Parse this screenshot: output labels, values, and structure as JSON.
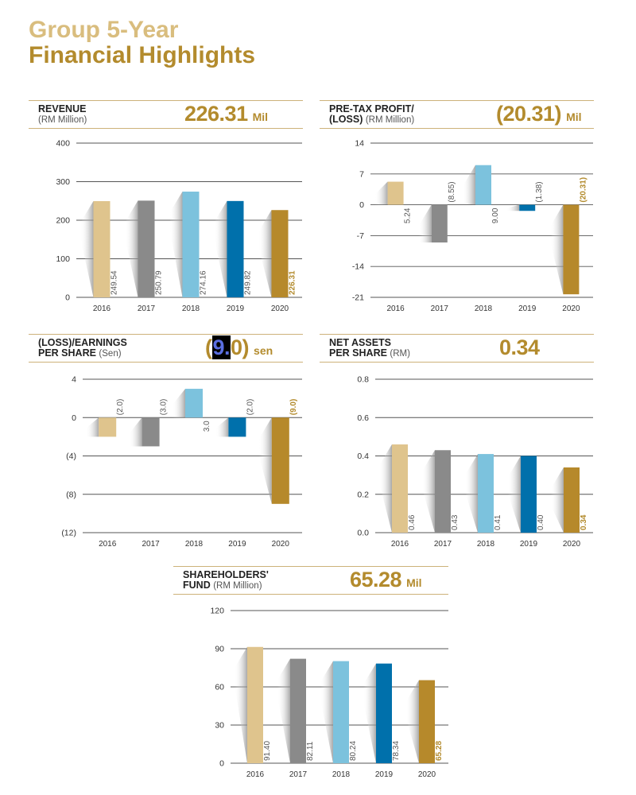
{
  "title": {
    "line1": "Group 5-Year",
    "line2": "Financial Highlights"
  },
  "colors": {
    "bars": [
      "#dfc48d",
      "#8a8a8a",
      "#7cc2dd",
      "#0070ab",
      "#b6892b"
    ],
    "accent": "#b38b2d",
    "label_gray": "#555555",
    "grid": "#555555"
  },
  "charts": {
    "revenue": {
      "label1": "REVENUE",
      "label2_sub": "(RM Million)",
      "headline_value": "226.31",
      "headline_unit": "Mil"
    },
    "pbt": {
      "label1": "PRE-TAX PROFIT/",
      "label2_main": "(LOSS)",
      "label2_sub": "(RM Million)",
      "headline_value": "(20.31)",
      "headline_unit": "Mil"
    },
    "eps": {
      "label1": "(LOSS)/EARNINGS",
      "label2_main": "PER SHARE",
      "label2_sub": "(Sen)",
      "headline_open": "(",
      "headline_highlight": "9.",
      "headline_close": "0)",
      "headline_unit": "sen"
    },
    "nav": {
      "label1": "NET ASSETS",
      "label2_main": "PER SHARE",
      "label2_sub": "(RM)",
      "headline_value": "0.34"
    },
    "shf": {
      "label1": "SHAREHOLDERS'",
      "label2_main": "FUND",
      "label2_sub": "(RM Million)",
      "headline_value": "65.28",
      "headline_unit": "Mil"
    }
  },
  "chart_data": [
    {
      "id": "revenue",
      "type": "bar",
      "title": "REVENUE (RM Million)",
      "categories": [
        "2016",
        "2017",
        "2018",
        "2019",
        "2020"
      ],
      "values": [
        249.54,
        250.79,
        274.16,
        249.82,
        226.31
      ],
      "value_labels": [
        "249.54",
        "250.79",
        "274.16",
        "249.82",
        "226.31"
      ],
      "ylim": [
        0,
        400
      ],
      "yticks": [
        0,
        100,
        200,
        300,
        400
      ],
      "ytick_labels": [
        "0",
        "100",
        "200",
        "300",
        "400"
      ]
    },
    {
      "id": "pbt",
      "type": "bar",
      "title": "PRE-TAX PROFIT/(LOSS) (RM Million)",
      "categories": [
        "2016",
        "2017",
        "2018",
        "2019",
        "2020"
      ],
      "values": [
        5.24,
        -8.55,
        9.0,
        -1.38,
        -20.31
      ],
      "value_labels": [
        "5.24",
        "(8.55)",
        "9.00",
        "(1.38)",
        "(20.31)"
      ],
      "ylim": [
        -21,
        14
      ],
      "yticks": [
        -21,
        -14,
        -7,
        0,
        7,
        14
      ],
      "ytick_labels": [
        "-21",
        "-14",
        "-7",
        "0",
        "7",
        "14"
      ]
    },
    {
      "id": "eps",
      "type": "bar",
      "title": "(LOSS)/EARNINGS PER SHARE (Sen)",
      "categories": [
        "2016",
        "2017",
        "2018",
        "2019",
        "2020"
      ],
      "values": [
        -2.0,
        -3.0,
        3.0,
        -2.0,
        -9.0
      ],
      "value_labels": [
        "(2.0)",
        "(3.0)",
        "3.0",
        "(2.0)",
        "(9.0)"
      ],
      "ylim": [
        -12,
        4
      ],
      "yticks": [
        -12,
        -8,
        -4,
        0,
        4
      ],
      "ytick_labels": [
        "(12)",
        "(8)",
        "(4)",
        "0",
        "4"
      ]
    },
    {
      "id": "nav",
      "type": "bar",
      "title": "NET ASSETS PER SHARE (RM)",
      "categories": [
        "2016",
        "2017",
        "2018",
        "2019",
        "2020"
      ],
      "values": [
        0.46,
        0.43,
        0.41,
        0.4,
        0.34
      ],
      "value_labels": [
        "0.46",
        "0.43",
        "0.41",
        "0.40",
        "0.34"
      ],
      "ylim": [
        0,
        0.8
      ],
      "yticks": [
        0,
        0.2,
        0.4,
        0.6,
        0.8
      ],
      "ytick_labels": [
        "0.0",
        "0.2",
        "0.4",
        "0.6",
        "0.8"
      ]
    },
    {
      "id": "shf",
      "type": "bar",
      "title": "SHAREHOLDERS' FUND (RM Million)",
      "categories": [
        "2016",
        "2017",
        "2018",
        "2019",
        "2020"
      ],
      "values": [
        91.4,
        82.11,
        80.24,
        78.34,
        65.28
      ],
      "value_labels": [
        "91.40",
        "82.11",
        "80.24",
        "78.34",
        "65.28"
      ],
      "ylim": [
        0,
        120
      ],
      "yticks": [
        0,
        30,
        60,
        90,
        120
      ],
      "ytick_labels": [
        "0",
        "30",
        "60",
        "90",
        "120"
      ]
    }
  ]
}
